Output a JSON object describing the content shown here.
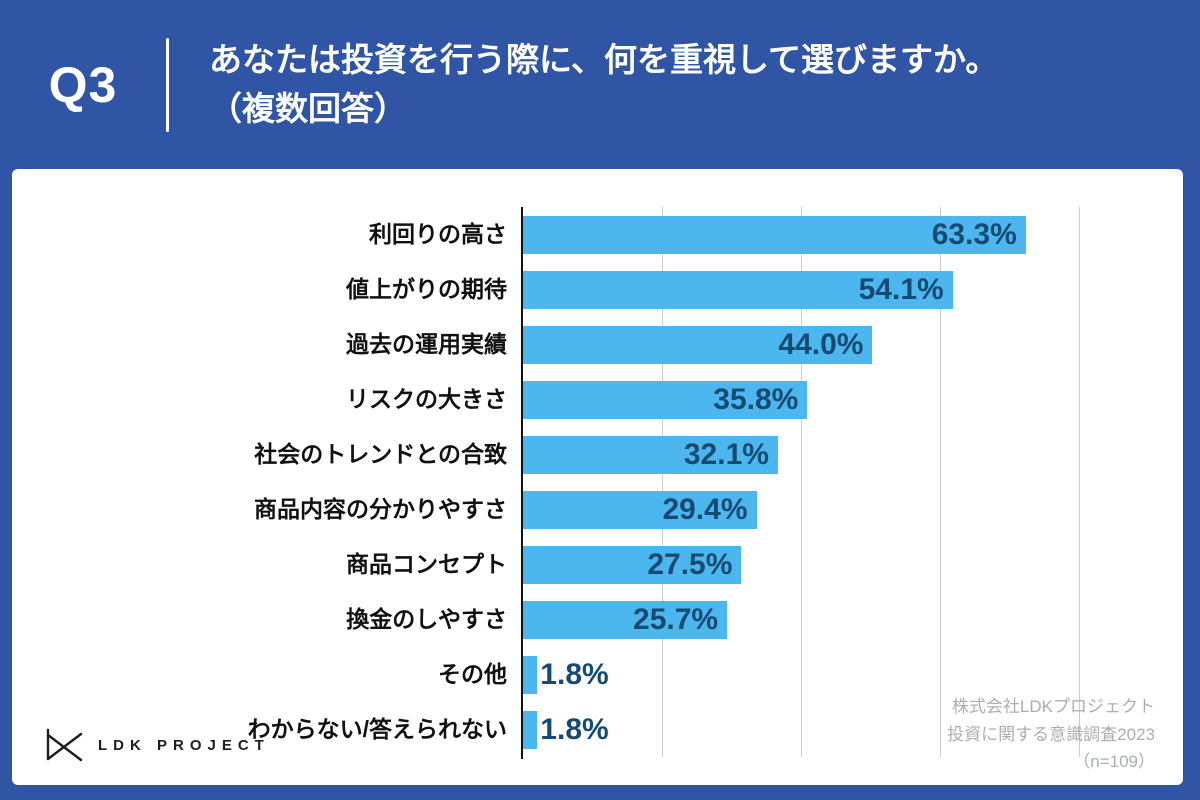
{
  "header": {
    "question_number": "Q3",
    "title_line1": "あなたは投資を行う際に、何を重視して選びますか。",
    "title_line2": "（複数回答）"
  },
  "chart_data": {
    "type": "bar",
    "orientation": "horizontal",
    "categories": [
      "利回りの高さ",
      "値上がりの期待",
      "過去の運用実績",
      "リスクの大きさ",
      "社会のトレンドとの合致",
      "商品内容の分かりやすさ",
      "商品コンセプト",
      "換金のしやすさ",
      "その他",
      "わからない/答えられない"
    ],
    "values": [
      63.3,
      54.1,
      44.0,
      35.8,
      32.1,
      29.4,
      27.5,
      25.7,
      1.8,
      1.8
    ],
    "value_labels": [
      "63.3%",
      "54.1%",
      "44.0%",
      "35.8%",
      "32.1%",
      "29.4%",
      "27.5%",
      "25.7%",
      "1.8%",
      "1.8%"
    ],
    "xlim": [
      0,
      70
    ],
    "gridline_values": [
      17.5,
      35,
      52.5,
      70
    ],
    "grid": "vertical-only",
    "legend_position": "none",
    "bar_color": "#4CB7EF",
    "value_label_color": "#164A73",
    "outside_label_threshold": 5
  },
  "footer": {
    "brand_name": "LDK PROJECT",
    "source_lines": {
      "line1": "株式会社LDKプロジェクト",
      "line2": "投資に関する意識調査2023",
      "line3": "（n=109）"
    }
  },
  "colors": {
    "background": "#2F55A4",
    "card": "#FFFFFF",
    "bar": "#4CB7EF",
    "value_label": "#164A73",
    "gridline": "#C9CDD2",
    "axis": "#111111",
    "source_text": "#A9AEB5"
  }
}
